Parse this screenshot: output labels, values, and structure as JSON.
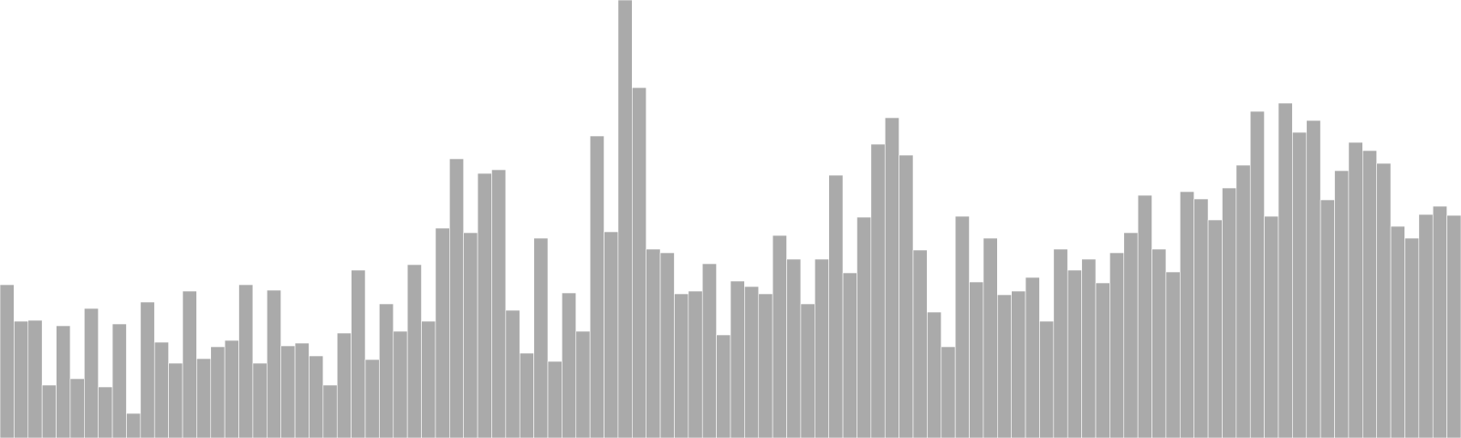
{
  "chart_data": {
    "type": "bar",
    "title": "",
    "xlabel": "",
    "ylabel": "",
    "ylim": [
      0,
      480
    ],
    "grid": false,
    "legend": "none",
    "bar_color": "#aaaaaa",
    "values": [
      168,
      128,
      129,
      58,
      123,
      65,
      142,
      56,
      125,
      27,
      149,
      105,
      82,
      161,
      87,
      100,
      107,
      168,
      82,
      162,
      101,
      104,
      90,
      58,
      115,
      184,
      86,
      147,
      117,
      190,
      128,
      230,
      306,
      225,
      290,
      294,
      140,
      93,
      219,
      84,
      159,
      117,
      331,
      226,
      480,
      384,
      207,
      203,
      158,
      161,
      191,
      113,
      172,
      166,
      158,
      222,
      196,
      147,
      196,
      288,
      181,
      242,
      322,
      351,
      310,
      206,
      138,
      100,
      243,
      171,
      219,
      157,
      161,
      176,
      128,
      207,
      184,
      196,
      170,
      203,
      225,
      266,
      207,
      182,
      270,
      262,
      239,
      274,
      299,
      358,
      243,
      367,
      335,
      348,
      261,
      293,
      324,
      315,
      301,
      232,
      219,
      245,
      254,
      244
    ]
  }
}
